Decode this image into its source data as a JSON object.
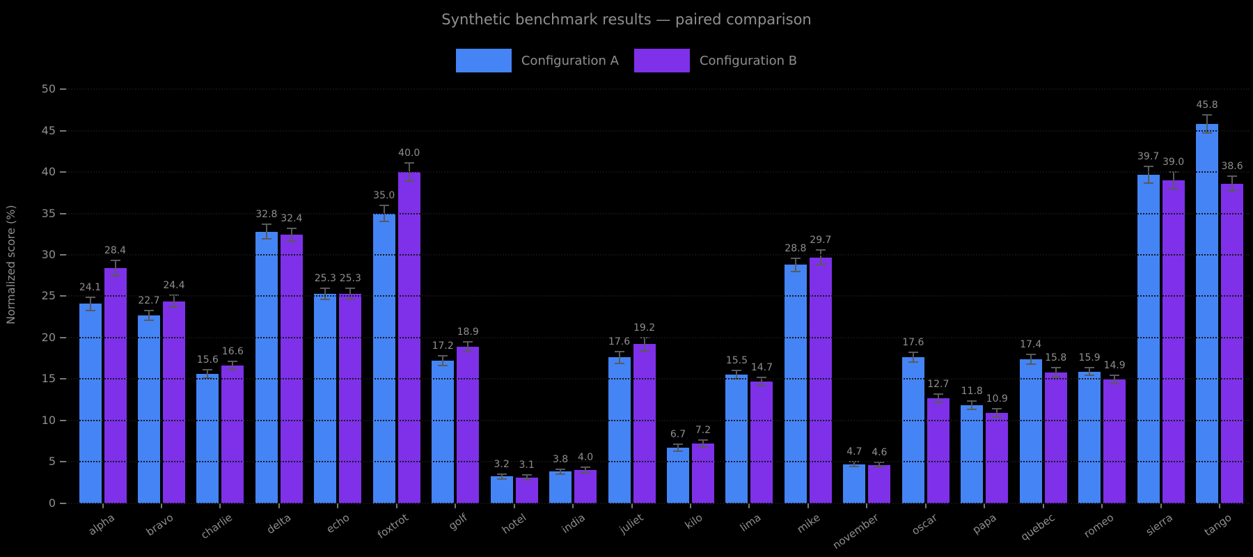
{
  "chart_data": {
    "type": "bar",
    "title": "Synthetic benchmark results — paired comparison",
    "ylabel": "Normalized score (%)",
    "background_color": "#000000",
    "text_color": "#8f8f8f",
    "grid": "horizontal dotted",
    "legend_position": "top-center",
    "ylim": [
      0,
      50
    ],
    "yticks": [
      0,
      5,
      10,
      15,
      20,
      25,
      30,
      35,
      40,
      45,
      50
    ],
    "categories": [
      "alpha",
      "bravo",
      "charlie",
      "delta",
      "echo",
      "foxtrot",
      "golf",
      "hotel",
      "india",
      "juliet",
      "kilo",
      "lima",
      "mike",
      "november",
      "oscar",
      "papa",
      "quebec",
      "romeo",
      "sierra",
      "tango"
    ],
    "series": [
      {
        "name": "Configuration A",
        "color": "#4584f4",
        "values": [
          24.1,
          22.7,
          15.6,
          32.8,
          25.3,
          35.0,
          17.2,
          3.2,
          3.8,
          17.6,
          6.7,
          15.5,
          28.8,
          4.7,
          17.6,
          11.8,
          17.4,
          15.9,
          39.7,
          45.8
        ],
        "errors": [
          0.8,
          0.6,
          0.5,
          0.9,
          0.7,
          1.0,
          0.6,
          0.3,
          0.3,
          0.7,
          0.4,
          0.5,
          0.8,
          0.3,
          0.6,
          0.5,
          0.6,
          0.5,
          1.0,
          1.1
        ]
      },
      {
        "name": "Configuration B",
        "color": "#7e31e8",
        "values": [
          28.4,
          24.4,
          16.6,
          32.4,
          25.3,
          40.0,
          18.9,
          3.1,
          4.0,
          19.2,
          7.2,
          14.7,
          29.7,
          4.6,
          12.7,
          10.9,
          15.8,
          14.9,
          39.0,
          38.6
        ],
        "errors": [
          0.9,
          0.7,
          0.5,
          0.8,
          0.7,
          1.1,
          0.6,
          0.3,
          0.3,
          0.8,
          0.4,
          0.5,
          0.9,
          0.3,
          0.5,
          0.5,
          0.6,
          0.5,
          1.0,
          0.9
        ]
      }
    ]
  }
}
